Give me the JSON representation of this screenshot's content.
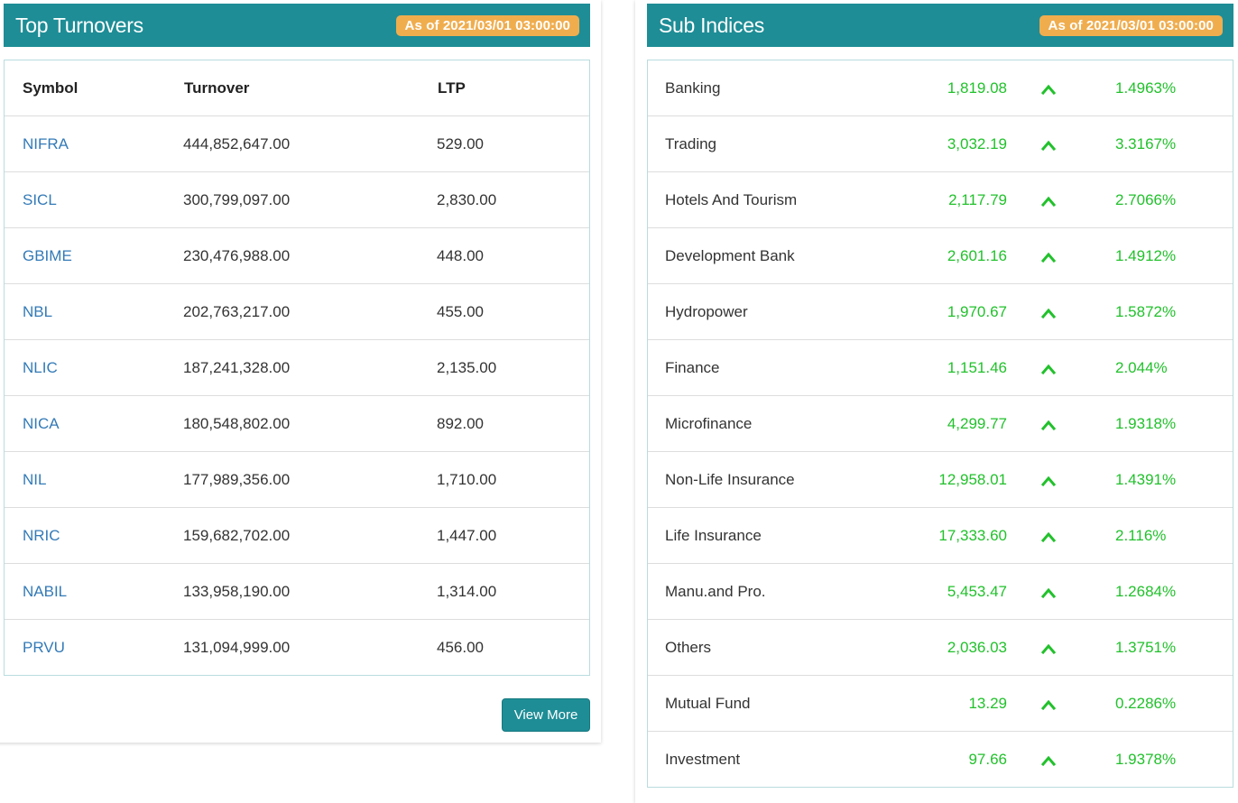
{
  "top_turnovers": {
    "title": "Top Turnovers",
    "as_of": "As of 2021/03/01 03:00:00",
    "columns": [
      "Symbol",
      "Turnover",
      "LTP"
    ],
    "rows": [
      {
        "symbol": "NIFRA",
        "turnover": "444,852,647.00",
        "ltp": "529.00"
      },
      {
        "symbol": "SICL",
        "turnover": "300,799,097.00",
        "ltp": "2,830.00"
      },
      {
        "symbol": "GBIME",
        "turnover": "230,476,988.00",
        "ltp": "448.00"
      },
      {
        "symbol": "NBL",
        "turnover": "202,763,217.00",
        "ltp": "455.00"
      },
      {
        "symbol": "NLIC",
        "turnover": "187,241,328.00",
        "ltp": "2,135.00"
      },
      {
        "symbol": "NICA",
        "turnover": "180,548,802.00",
        "ltp": "892.00"
      },
      {
        "symbol": "NIL",
        "turnover": "177,989,356.00",
        "ltp": "1,710.00"
      },
      {
        "symbol": "NRIC",
        "turnover": "159,682,702.00",
        "ltp": "1,447.00"
      },
      {
        "symbol": "NABIL",
        "turnover": "133,958,190.00",
        "ltp": "1,314.00"
      },
      {
        "symbol": "PRVU",
        "turnover": "131,094,999.00",
        "ltp": "456.00"
      }
    ],
    "view_more_label": "View More"
  },
  "sub_indices": {
    "title": "Sub Indices",
    "as_of": "As of 2021/03/01 03:00:00",
    "trend_icon": "chevron-up-icon",
    "rows": [
      {
        "name": "Banking",
        "value": "1,819.08",
        "change": "1.4963%"
      },
      {
        "name": "Trading",
        "value": "3,032.19",
        "change": "3.3167%"
      },
      {
        "name": "Hotels And Tourism",
        "value": "2,117.79",
        "change": "2.7066%"
      },
      {
        "name": "Development Bank",
        "value": "2,601.16",
        "change": "1.4912%"
      },
      {
        "name": "Hydropower",
        "value": "1,970.67",
        "change": "1.5872%"
      },
      {
        "name": "Finance",
        "value": "1,151.46",
        "change": "2.044%"
      },
      {
        "name": "Microfinance",
        "value": "4,299.77",
        "change": "1.9318%"
      },
      {
        "name": "Non-Life Insurance",
        "value": "12,958.01",
        "change": "1.4391%"
      },
      {
        "name": "Life Insurance",
        "value": "17,333.60",
        "change": "2.116%"
      },
      {
        "name": "Manu.and Pro.",
        "value": "5,453.47",
        "change": "1.2684%"
      },
      {
        "name": "Others",
        "value": "2,036.03",
        "change": "1.3751%"
      },
      {
        "name": "Mutual Fund",
        "value": "13.29",
        "change": "0.2286%"
      },
      {
        "name": "Investment",
        "value": "97.66",
        "change": "1.9378%"
      }
    ]
  },
  "colors": {
    "header_bg": "#1e8d96",
    "badge_bg": "#f0ad4e",
    "link": "#337ab7",
    "positive": "#22c12c"
  }
}
